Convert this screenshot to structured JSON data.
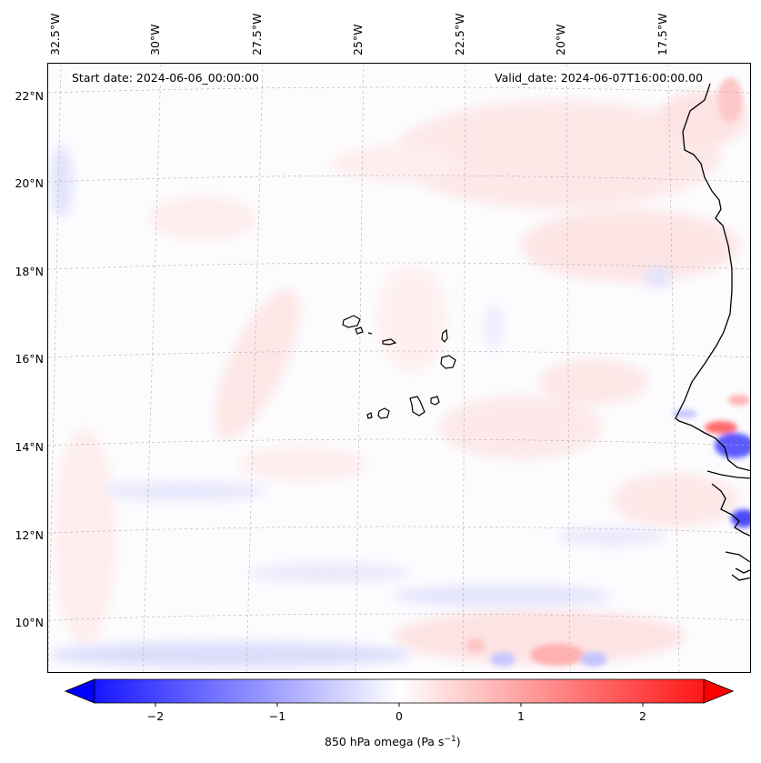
{
  "map": {
    "start_date": "Start date: 2024-06-06_00:00:00",
    "valid_date": "Valid_date: 2024-06-07T16:00:00.00",
    "lon_labels": [
      "32.5°W",
      "30°W",
      "27.5°W",
      "25°W",
      "22.5°W",
      "20°W",
      "17.5°W"
    ],
    "lat_labels": [
      "22°N",
      "20°N",
      "18°N",
      "16°N",
      "14°N",
      "12°N",
      "10°N"
    ],
    "field": "850 hPa omega",
    "colormap": "bwr"
  },
  "colorbar": {
    "ticks": [
      "−2",
      "−1",
      "0",
      "1",
      "2"
    ],
    "title_prefix": "850 hPa omega (Pa s",
    "title_exp": "−1",
    "title_suffix": ")",
    "min_color": "#0000ff",
    "mid_color": "#ffffff",
    "max_color": "#ff0000"
  }
}
